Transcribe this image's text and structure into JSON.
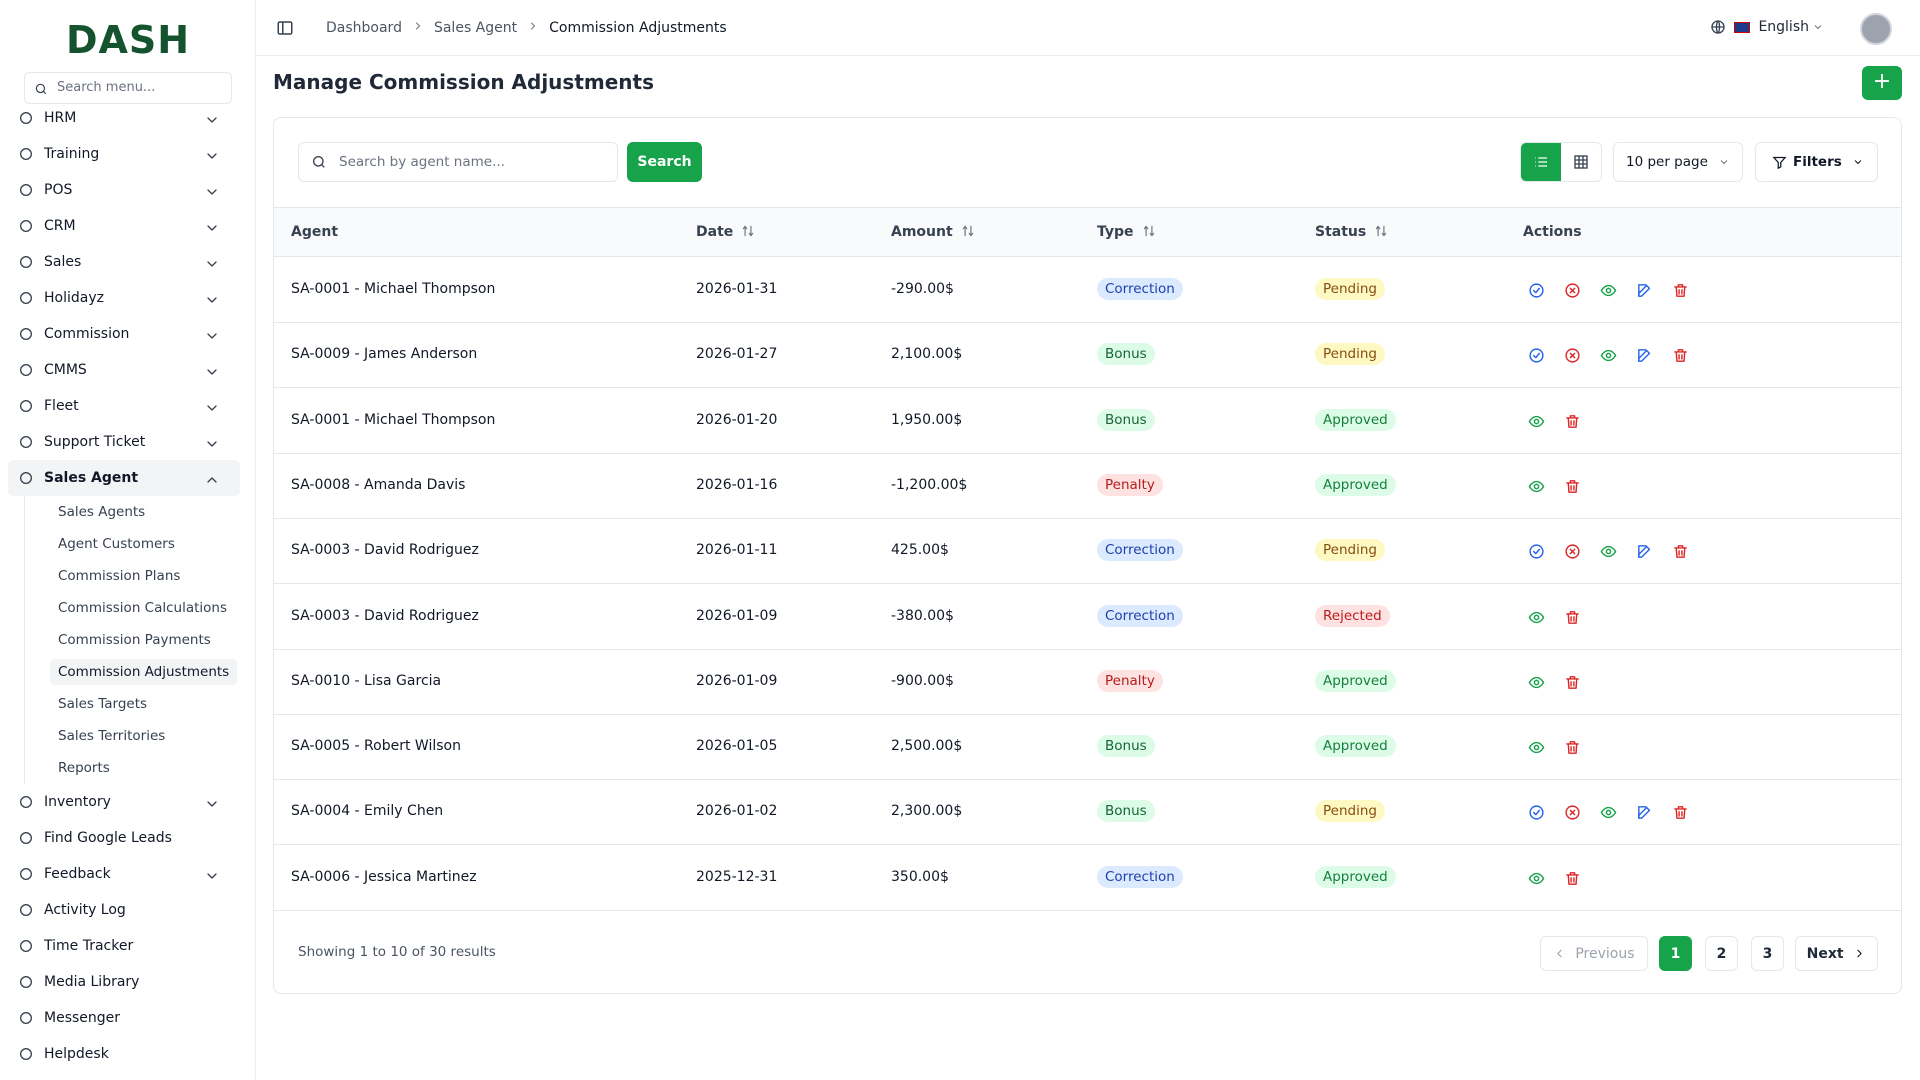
{
  "sidebar": {
    "logo": "DASH",
    "search_placeholder": "Search menu...",
    "items": [
      {
        "label": "HRM",
        "chevron": true
      },
      {
        "label": "Training",
        "chevron": true
      },
      {
        "label": "POS",
        "chevron": true
      },
      {
        "label": "CRM",
        "chevron": true
      },
      {
        "label": "Sales",
        "chevron": true
      },
      {
        "label": "Holidayz",
        "chevron": true
      },
      {
        "label": "Commission",
        "chevron": true
      },
      {
        "label": "CMMS",
        "chevron": true
      },
      {
        "label": "Fleet",
        "chevron": true
      },
      {
        "label": "Support Ticket",
        "chevron": true
      },
      {
        "label": "Sales Agent",
        "chevron": true,
        "open": true,
        "children": [
          "Sales Agents",
          "Agent Customers",
          "Commission Plans",
          "Commission Calculations",
          "Commission Payments",
          "Commission Adjustments",
          "Sales Targets",
          "Sales Territories",
          "Reports"
        ],
        "active_child": 5
      },
      {
        "label": "Inventory",
        "chevron": true
      },
      {
        "label": "Find Google Leads",
        "chevron": false
      },
      {
        "label": "Feedback",
        "chevron": true
      },
      {
        "label": "Activity Log",
        "chevron": false
      },
      {
        "label": "Time Tracker",
        "chevron": false
      },
      {
        "label": "Media Library",
        "chevron": false
      },
      {
        "label": "Messenger",
        "chevron": false
      },
      {
        "label": "Helpdesk",
        "chevron": false
      }
    ]
  },
  "header": {
    "breadcrumbs": [
      "Dashboard",
      "Sales Agent",
      "Commission Adjustments"
    ],
    "language": "English"
  },
  "page": {
    "title": "Manage Commission Adjustments",
    "search_placeholder": "Search by agent name...",
    "search_button": "Search",
    "per_page": "10 per page",
    "filters": "Filters"
  },
  "table": {
    "columns": [
      "Agent",
      "Date",
      "Amount",
      "Type",
      "Status",
      "Actions"
    ],
    "rows": [
      [
        "SA-0001 - Michael Thompson",
        "2026-01-31",
        "-290.00$",
        "Correction",
        "Pending"
      ],
      [
        "SA-0009 - James Anderson",
        "2026-01-27",
        "2,100.00$",
        "Bonus",
        "Pending"
      ],
      [
        "SA-0001 - Michael Thompson",
        "2026-01-20",
        "1,950.00$",
        "Bonus",
        "Approved"
      ],
      [
        "SA-0008 - Amanda Davis",
        "2026-01-16",
        "-1,200.00$",
        "Penalty",
        "Approved"
      ],
      [
        "SA-0003 - David Rodriguez",
        "2026-01-11",
        "425.00$",
        "Correction",
        "Pending"
      ],
      [
        "SA-0003 - David Rodriguez",
        "2026-01-09",
        "-380.00$",
        "Correction",
        "Rejected"
      ],
      [
        "SA-0010 - Lisa Garcia",
        "2026-01-09",
        "-900.00$",
        "Penalty",
        "Approved"
      ],
      [
        "SA-0005 - Robert Wilson",
        "2026-01-05",
        "2,500.00$",
        "Bonus",
        "Approved"
      ],
      [
        "SA-0004 - Emily Chen",
        "2026-01-02",
        "2,300.00$",
        "Bonus",
        "Pending"
      ],
      [
        "SA-0006 - Jessica Martinez",
        "2025-12-31",
        "350.00$",
        "Correction",
        "Approved"
      ]
    ]
  },
  "pagination": {
    "summary": "Showing 1 to 10 of 30 results",
    "previous": "Previous",
    "pages": [
      "1",
      "2",
      "3"
    ],
    "current": 0,
    "next": "Next"
  }
}
